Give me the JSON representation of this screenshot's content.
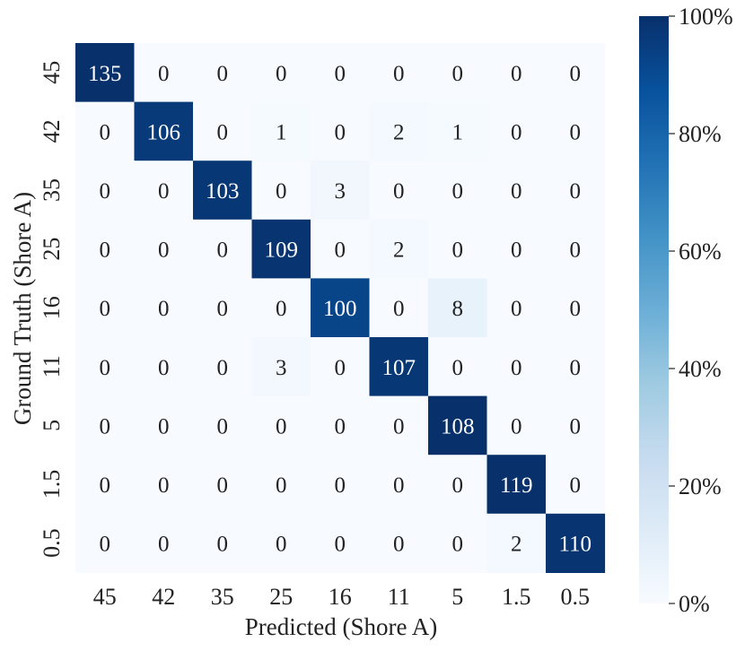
{
  "chart_data": {
    "type": "heatmap",
    "title": "",
    "xlabel": "Predicted (Shore A)",
    "ylabel": "Ground Truth (Shore A)",
    "x_categories": [
      "45",
      "42",
      "35",
      "25",
      "16",
      "11",
      "5",
      "1.5",
      "0.5"
    ],
    "y_categories": [
      "45",
      "42",
      "35",
      "25",
      "16",
      "11",
      "5",
      "1.5",
      "0.5"
    ],
    "matrix": [
      [
        135,
        0,
        0,
        0,
        0,
        0,
        0,
        0,
        0
      ],
      [
        0,
        106,
        0,
        1,
        0,
        2,
        1,
        0,
        0
      ],
      [
        0,
        0,
        103,
        0,
        3,
        0,
        0,
        0,
        0
      ],
      [
        0,
        0,
        0,
        109,
        0,
        2,
        0,
        0,
        0
      ],
      [
        0,
        0,
        0,
        0,
        100,
        0,
        8,
        0,
        0
      ],
      [
        0,
        0,
        0,
        3,
        0,
        107,
        0,
        0,
        0
      ],
      [
        0,
        0,
        0,
        0,
        0,
        0,
        108,
        0,
        0
      ],
      [
        0,
        0,
        0,
        0,
        0,
        0,
        0,
        119,
        0
      ],
      [
        0,
        0,
        0,
        0,
        0,
        0,
        0,
        2,
        110
      ]
    ],
    "colorbar": {
      "ticks": [
        "0%",
        "20%",
        "40%",
        "60%",
        "80%",
        "100%"
      ],
      "range": [
        0,
        100
      ]
    },
    "colormap": "Blues",
    "grid": false,
    "legend": "right"
  }
}
